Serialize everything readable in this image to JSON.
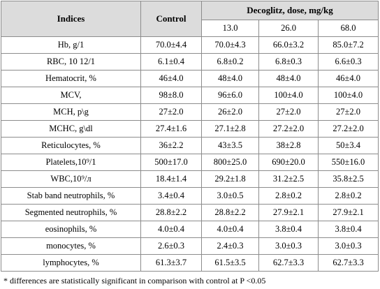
{
  "table": {
    "headers": {
      "indices": "Indices",
      "control": "Control",
      "group": "Decoglitz, dose, mg/kg",
      "doses": [
        "13.0",
        "26.0",
        "68.0"
      ]
    },
    "rows": [
      {
        "label": "Hb, g/1",
        "values": [
          "70.0±4.4",
          "70.0±4.3",
          "66.0±3.2",
          "85.0±7.2"
        ]
      },
      {
        "label": "RBC, 10 12/1",
        "values": [
          "6.1±0.4",
          "6.8±0.2",
          "6.8±0.3",
          "6.6±0.3"
        ]
      },
      {
        "label": "Hematocrit, %",
        "values": [
          "46±4.0",
          "48±4.0",
          "48±4.0",
          "46±4.0"
        ]
      },
      {
        "label": "MCV,",
        "values": [
          "98±8.0",
          "96±6.0",
          "100±4.0",
          "100±4.0"
        ]
      },
      {
        "label": "MCH, p\\g",
        "values": [
          "27±2.0",
          "26±2.0",
          "27±2.0",
          "27±2.0"
        ]
      },
      {
        "label": "MCHC, g\\dl",
        "values": [
          "27.4±1.6",
          "27.1±2.8",
          "27.2±2.0",
          "27.2±2.0"
        ]
      },
      {
        "label": "Reticulocytes, %",
        "values": [
          "36±2.2",
          "43±3.5",
          "38±2.8",
          "50±3.4"
        ]
      },
      {
        "label": "Platelets,10⁹/1",
        "values": [
          "500±17.0",
          "800±25.0",
          "690±20.0",
          "550±16.0"
        ]
      },
      {
        "label": "WBC,10⁹/л",
        "values": [
          "18.4±1.4",
          "29.2±1.8",
          "31.2±2.5",
          "35.8±2.5"
        ]
      },
      {
        "label": "Stab band neutrophils, %",
        "values": [
          "3.4±0.4",
          "3.0±0.5",
          "2.8±0.2",
          "2.8±0.2"
        ]
      },
      {
        "label": "Segmented neutrophils, %",
        "values": [
          "28.8±2.2",
          "28.8±2.2",
          "27.9±2.1",
          "27.9±2.1"
        ]
      },
      {
        "label": "eosinophils, %",
        "values": [
          "4.0±0.4",
          "4.0±0.4",
          "3.8±0.4",
          "3.8±0.4"
        ]
      },
      {
        "label": "monocytes, %",
        "values": [
          "2.6±0.3",
          "2.4±0.3",
          "3.0±0.3",
          "3.0±0.3"
        ]
      },
      {
        "label": "lymphocytes, %",
        "values": [
          "61.3±3.7",
          "61.5±3.5",
          "62.7±3.3",
          "62.7±3.3"
        ]
      }
    ]
  },
  "footnote": "* differences are statistically significant in comparison with control at P <0.05"
}
